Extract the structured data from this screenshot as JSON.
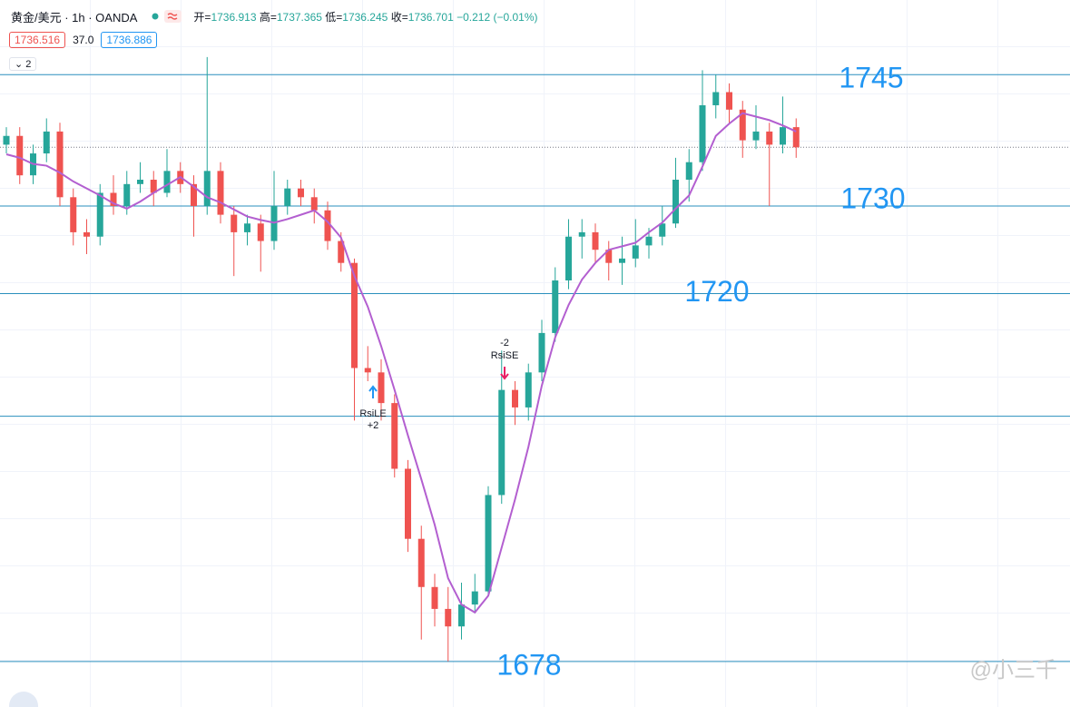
{
  "header": {
    "symbol": "黄金/美元 · 1h · OANDA",
    "ohlc": [
      {
        "label": "开=",
        "value": 1736.913
      },
      {
        "label": "高=",
        "value": 1737.365
      },
      {
        "label": "低=",
        "value": 1736.245
      },
      {
        "label": "收=",
        "value": 1736.701
      }
    ],
    "change": "−0.212",
    "change_pct": "(−0.01%)",
    "bid": 1736.516,
    "spread": "37.0",
    "ask": 1736.886,
    "indicator_count": 2
  },
  "chart_data": {
    "type": "candlestick",
    "up_color": "#26a69a",
    "down_color": "#ef5350",
    "ylim": [
      1672.8,
      1747.3
    ],
    "candles": [
      [
        1737.0,
        1739.0,
        1736.0,
        1738.0
      ],
      [
        1738.0,
        1739.0,
        1732.5,
        1733.5
      ],
      [
        1733.5,
        1737.0,
        1732.5,
        1736.0
      ],
      [
        1736.0,
        1740.0,
        1735.0,
        1738.5
      ],
      [
        1738.5,
        1739.5,
        1730.0,
        1731.0
      ],
      [
        1731.0,
        1732.0,
        1725.5,
        1727.0
      ],
      [
        1727.0,
        1728.5,
        1724.5,
        1726.5
      ],
      [
        1726.5,
        1732.5,
        1725.5,
        1731.5
      ],
      [
        1731.5,
        1733.5,
        1729.0,
        1730.0
      ],
      [
        1730.0,
        1734.0,
        1729.0,
        1732.5
      ],
      [
        1732.5,
        1735.0,
        1731.5,
        1733.0
      ],
      [
        1733.0,
        1734.0,
        1730.0,
        1731.5
      ],
      [
        1731.5,
        1736.5,
        1731.0,
        1734.0
      ],
      [
        1734.0,
        1735.0,
        1731.5,
        1732.5
      ],
      [
        1732.5,
        1733.5,
        1726.5,
        1730.0
      ],
      [
        1730.0,
        1747.0,
        1729.0,
        1734.0
      ],
      [
        1734.0,
        1735.0,
        1728.0,
        1729.0
      ],
      [
        1729.0,
        1730.0,
        1722.0,
        1727.0
      ],
      [
        1727.0,
        1729.0,
        1725.5,
        1728.0
      ],
      [
        1728.0,
        1729.0,
        1722.5,
        1726.0
      ],
      [
        1726.0,
        1734.0,
        1725.0,
        1730.0
      ],
      [
        1730.0,
        1733.0,
        1729.0,
        1732.0
      ],
      [
        1732.0,
        1733.0,
        1730.0,
        1731.0
      ],
      [
        1731.0,
        1732.0,
        1728.0,
        1729.5
      ],
      [
        1729.5,
        1730.5,
        1725.0,
        1726.0
      ],
      [
        1726.0,
        1727.0,
        1722.5,
        1723.5
      ],
      [
        1723.5,
        1724.0,
        1705.5,
        1711.5
      ],
      [
        1711.5,
        1714.0,
        1710.0,
        1711.0
      ],
      [
        1711.0,
        1712.5,
        1705.5,
        1707.5
      ],
      [
        1707.5,
        1708.5,
        1699.0,
        1700.0
      ],
      [
        1700.0,
        1701.0,
        1690.5,
        1692.0
      ],
      [
        1692.0,
        1693.5,
        1680.5,
        1686.5
      ],
      [
        1686.5,
        1688.0,
        1682.0,
        1684.0
      ],
      [
        1684.0,
        1686.5,
        1678.0,
        1682.0
      ],
      [
        1682.0,
        1687.0,
        1680.5,
        1684.5
      ],
      [
        1684.5,
        1688.0,
        1683.5,
        1686.0
      ],
      [
        1686.0,
        1698.0,
        1685.5,
        1697.0
      ],
      [
        1697.0,
        1713.5,
        1696.0,
        1709.0
      ],
      [
        1709.0,
        1710.0,
        1705.0,
        1707.0
      ],
      [
        1707.0,
        1712.0,
        1705.5,
        1711.0
      ],
      [
        1711.0,
        1717.0,
        1710.0,
        1715.5
      ],
      [
        1715.5,
        1723.0,
        1714.5,
        1721.5
      ],
      [
        1721.5,
        1728.5,
        1720.5,
        1726.5
      ],
      [
        1726.5,
        1728.5,
        1724.0,
        1727.0
      ],
      [
        1727.0,
        1728.0,
        1723.5,
        1725.0
      ],
      [
        1725.0,
        1726.0,
        1721.5,
        1723.5
      ],
      [
        1723.5,
        1726.5,
        1721.0,
        1724.0
      ],
      [
        1724.0,
        1728.5,
        1723.0,
        1725.5
      ],
      [
        1725.5,
        1727.5,
        1724.0,
        1726.5
      ],
      [
        1726.5,
        1730.0,
        1725.5,
        1728.0
      ],
      [
        1728.0,
        1735.5,
        1727.5,
        1733.0
      ],
      [
        1733.0,
        1736.5,
        1730.5,
        1735.0
      ],
      [
        1735.0,
        1745.5,
        1734.0,
        1741.5
      ],
      [
        1741.5,
        1745.0,
        1740.0,
        1743.0
      ],
      [
        1743.0,
        1744.0,
        1739.5,
        1741.0
      ],
      [
        1741.0,
        1742.0,
        1735.5,
        1737.5
      ],
      [
        1737.5,
        1741.5,
        1736.5,
        1738.5
      ],
      [
        1738.5,
        1739.5,
        1730.0,
        1737.0
      ],
      [
        1737.0,
        1742.5,
        1736.0,
        1739.0
      ],
      [
        1739.0,
        1740.0,
        1735.5,
        1736.7
      ]
    ],
    "ma": {
      "color": "#b35fd0",
      "values": [
        1735.9,
        1735.5,
        1734.8,
        1734.6,
        1733.8,
        1732.8,
        1732.0,
        1731.2,
        1730.3,
        1729.7,
        1730.5,
        1731.5,
        1732.4,
        1733.3,
        1732.2,
        1731.0,
        1730.4,
        1729.6,
        1728.8,
        1728.4,
        1728.1,
        1728.5,
        1729.0,
        1729.5,
        1728.2,
        1726.4,
        1722.0,
        1718.5,
        1714.0,
        1709.0,
        1703.8,
        1698.8,
        1693.6,
        1687.5,
        1684.5,
        1683.6,
        1685.5,
        1691.0,
        1696.5,
        1702.5,
        1709.5,
        1715.0,
        1718.7,
        1721.6,
        1723.5,
        1725.0,
        1725.4,
        1725.8,
        1727.0,
        1728.1,
        1729.7,
        1731.2,
        1734.5,
        1738.0,
        1739.4,
        1740.6,
        1740.2,
        1739.8,
        1739.2,
        1738.5
      ]
    },
    "levels": [
      1745,
      1730,
      1720,
      1706,
      1678
    ],
    "level_labels": [
      "1745",
      "1730",
      "1720",
      null,
      "1678"
    ],
    "level_color": "#2a8fbd",
    "signals": [
      {
        "name": "RsiLE",
        "qty": "+2",
        "color": "#2196f3"
      },
      {
        "name": "RsiSE",
        "qty": "-2",
        "color": "#e91e63"
      }
    ]
  },
  "watermark": "@小三千"
}
